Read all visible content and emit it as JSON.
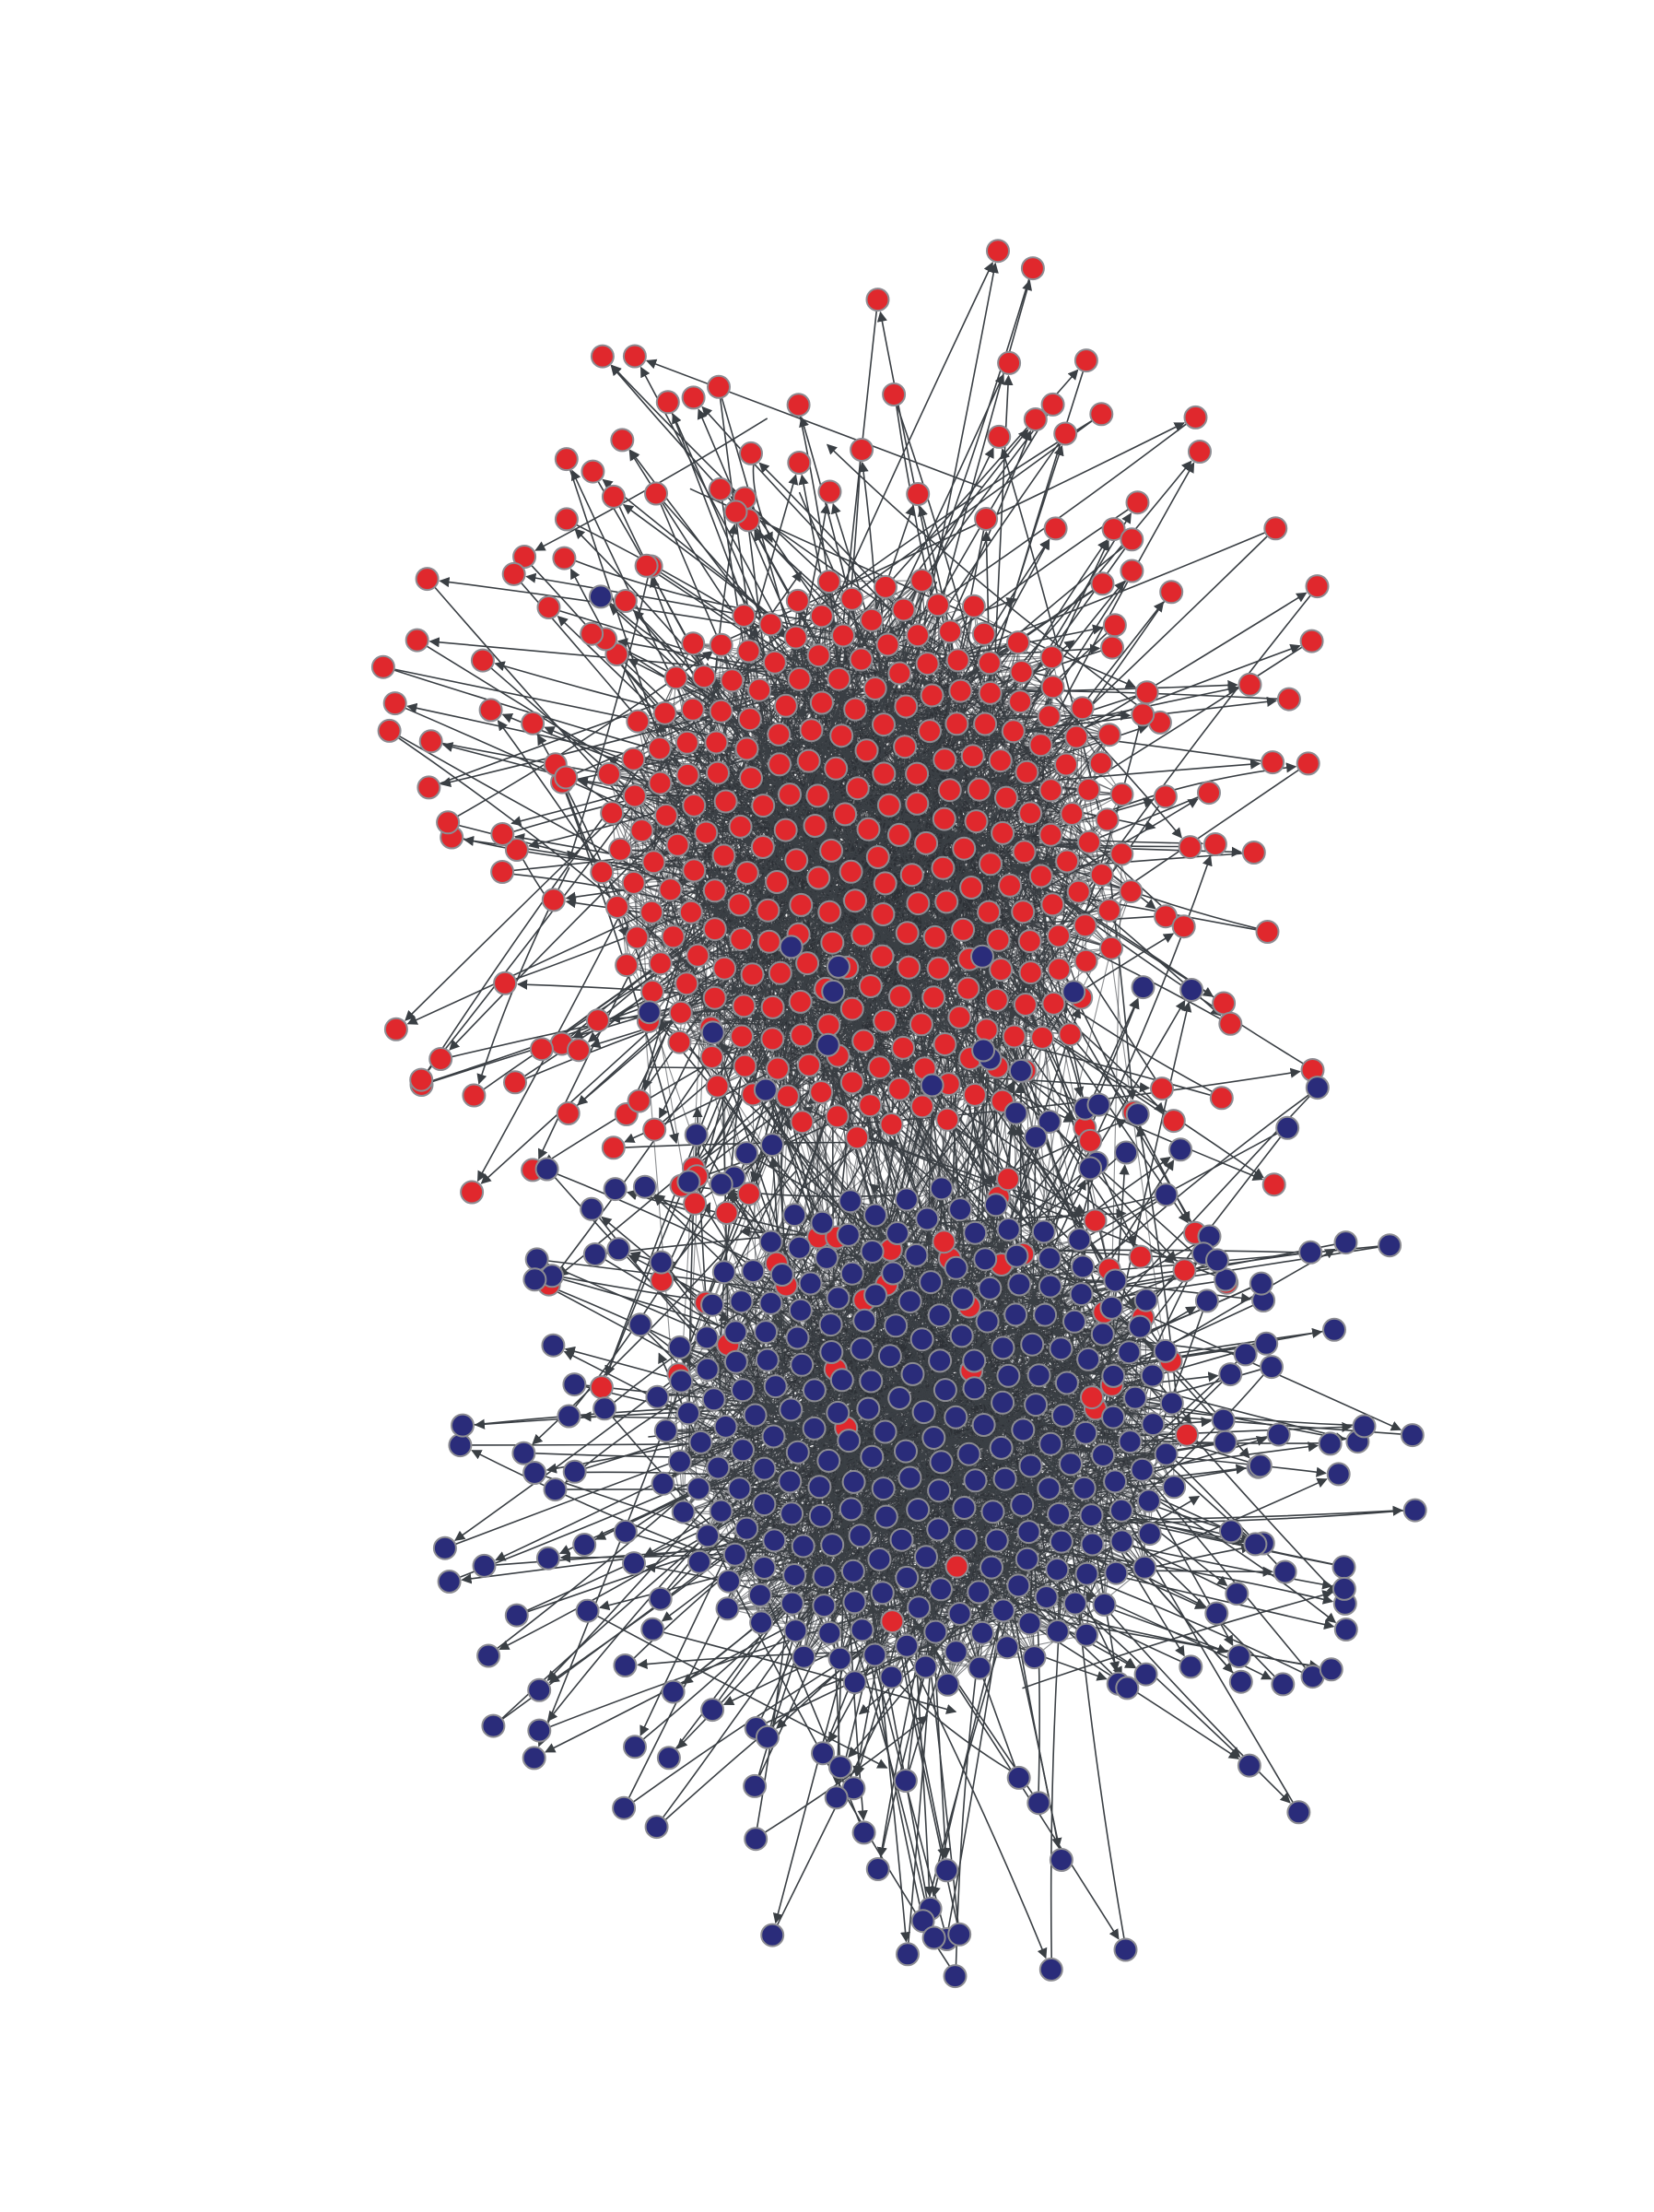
{
  "diagram": {
    "type": "directed-network",
    "groups": [
      {
        "id": "red",
        "color": "#e0282d",
        "visible_node_count": 420
      },
      {
        "id": "blue",
        "color": "#2a2c7a",
        "visible_node_count": 390
      }
    ],
    "node_outline_color": "#8c8c92",
    "edge_color": "#3a3f44",
    "background": "#ffffff",
    "arrowheads": true,
    "labels": []
  }
}
